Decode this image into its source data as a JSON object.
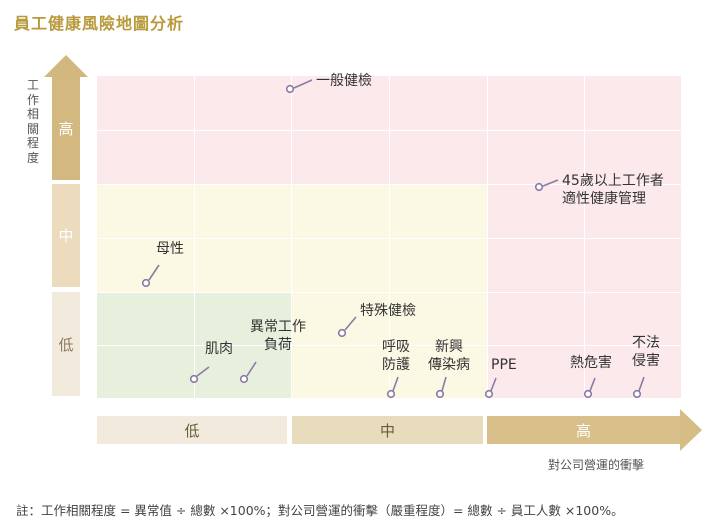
{
  "title": "員工健康風險地圖分析",
  "y_axis": {
    "label": "工作相關程度",
    "levels": [
      "高",
      "中",
      "低"
    ]
  },
  "x_axis": {
    "label": "對公司營運的衝擊",
    "levels": [
      "低",
      "中",
      "高"
    ]
  },
  "items": [
    {
      "id": "general-checkup",
      "lines": [
        "一般健檢"
      ]
    },
    {
      "id": "over-45",
      "lines": [
        "45歲以上工作者",
        "適性健康管理"
      ]
    },
    {
      "id": "maternity",
      "lines": [
        "母性"
      ]
    },
    {
      "id": "special-checkup",
      "lines": [
        "特殊健檢"
      ]
    },
    {
      "id": "abnormal-work",
      "lines": [
        "異常工作",
        "負荷"
      ]
    },
    {
      "id": "musculoskeletal",
      "lines": [
        "肌肉"
      ]
    },
    {
      "id": "respiratory",
      "lines": [
        "呼吸",
        "防護"
      ]
    },
    {
      "id": "emerging-disease",
      "lines": [
        "新興",
        "傳染病"
      ]
    },
    {
      "id": "ppe",
      "lines": [
        "PPE"
      ]
    },
    {
      "id": "heat-hazard",
      "lines": [
        "熱危害"
      ]
    },
    {
      "id": "unlawful-harm",
      "lines": [
        "不法",
        "侵害"
      ]
    }
  ],
  "footnote": "註：工作相關程度 = 異常值 ÷ 總數 ×100%；對公司營運的衝擊（嚴重程度）= 總數 ÷ 員工人數 ×100%。",
  "colors": {
    "high_zone": "#fbe9ec",
    "mid_zone": "#fbf8e4",
    "low_zone": "#e7efdd",
    "marker": "#8a7aa6",
    "title": "#b89a3c"
  }
}
